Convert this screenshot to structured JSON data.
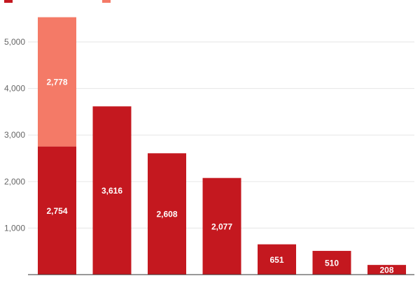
{
  "chart_data": {
    "type": "bar",
    "stacked": true,
    "categories": [
      "",
      "",
      "",
      "",
      "",
      "",
      ""
    ],
    "series": [
      {
        "name": "",
        "color": "#c4181f",
        "values": [
          2754,
          3616,
          2608,
          2077,
          651,
          510,
          208
        ],
        "labels": [
          "2,754",
          "3,616",
          "2,608",
          "2,077",
          "651",
          "510",
          "208"
        ]
      },
      {
        "name": "",
        "color": "#f47a67",
        "values": [
          2778,
          0,
          0,
          0,
          0,
          0,
          0
        ],
        "labels": [
          "2,778",
          "",
          "",
          "",
          "",
          "",
          ""
        ]
      }
    ],
    "ylim": [
      0,
      5500
    ],
    "yticks": [
      1000,
      2000,
      3000,
      4000,
      5000
    ],
    "ytick_labels": [
      "1,000",
      "2,000",
      "3,000",
      "4,000",
      "5,000"
    ],
    "grid": true,
    "legend": "top-left",
    "title": "",
    "xlabel": "",
    "ylabel": ""
  }
}
